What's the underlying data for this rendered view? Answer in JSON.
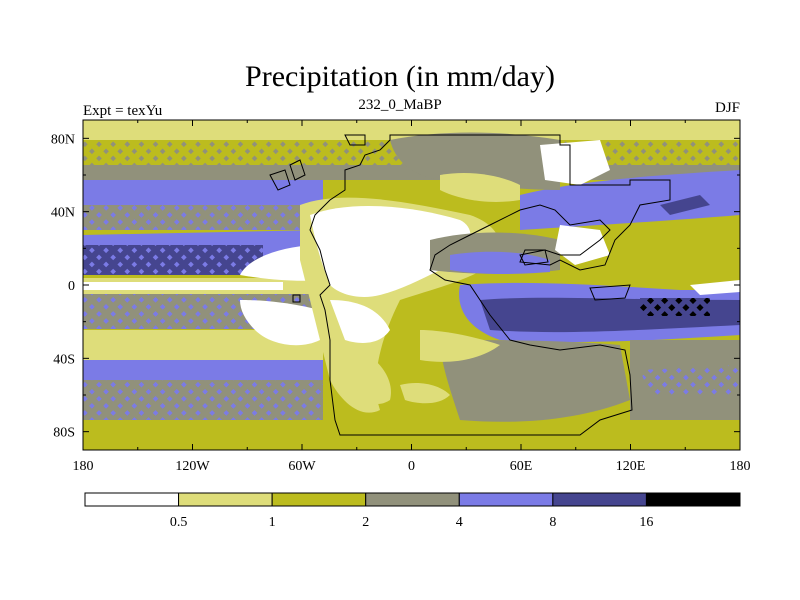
{
  "title": "Precipitation (in mm/day)",
  "subtitle_left": "Expt = texYu",
  "subtitle_center": "232_0_MaBP",
  "subtitle_right": "DJF",
  "axes": {
    "lon_ticks": [
      "180",
      "120W",
      "60W",
      "0",
      "60E",
      "120E",
      "180"
    ],
    "lat_ticks": [
      "80N",
      "40N",
      "0",
      "40S",
      "80S"
    ],
    "lon_range": [
      -180,
      180
    ],
    "lat_range": [
      -90,
      90
    ]
  },
  "colorbar": {
    "colors": [
      "#ffffff",
      "#dedd7a",
      "#bcbc1e",
      "#91917b",
      "#7b7be6",
      "#45458f",
      "#000000"
    ],
    "labels": [
      "0.5",
      "1",
      "2",
      "4",
      "8",
      "16"
    ]
  },
  "map_colors": {
    "white": "#ffffff",
    "light": "#dedd7a",
    "olive": "#bcbc1e",
    "gray": "#91917b",
    "blue": "#7b7be6",
    "dark": "#45458f",
    "black": "#000000"
  }
}
